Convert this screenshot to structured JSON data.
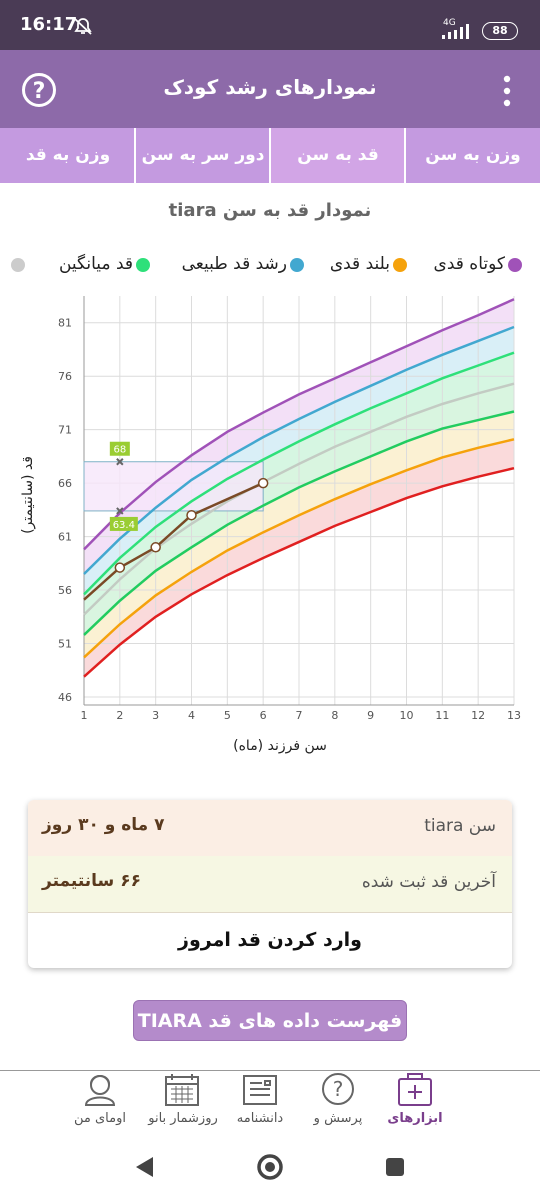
{
  "status_bar": {
    "time": "16:17",
    "network": "4G",
    "battery": "88"
  },
  "app_bar": {
    "title": "نمودارهای رشد کودک"
  },
  "tabs": [
    {
      "label": "وزن به سن",
      "selected": false
    },
    {
      "label": "قد به سن",
      "selected": true
    },
    {
      "label": "دور سر به سن",
      "selected": false
    },
    {
      "label": "وزن به قد",
      "selected": false
    }
  ],
  "chart_data": {
    "type": "line",
    "title": "نمودار قد به سن tiara",
    "x_label": "سن فرزند (ماه)",
    "y_label": "قد (سانتیمتر)",
    "legend": [
      {
        "label": "کوتاه قدی",
        "color": "#a052b8"
      },
      {
        "label": "بلند قدی",
        "color": "#f5a20c"
      },
      {
        "label": "رشد قد طبیعی",
        "color": "#42a8d0"
      },
      {
        "label": "قد میانگین",
        "color": "#2ee07a"
      }
    ],
    "x": [
      1,
      2,
      3,
      4,
      5,
      6,
      7,
      8,
      9,
      10,
      11,
      12,
      13
    ],
    "xlim": [
      1,
      13
    ],
    "xticks": [
      1,
      2,
      3,
      4,
      5,
      6,
      7,
      8,
      9,
      10,
      11,
      12,
      13
    ],
    "ylim": [
      45.25,
      83.5
    ],
    "yticks": [
      46,
      51,
      56,
      61,
      66,
      71,
      76,
      81
    ],
    "grid": true,
    "series": [
      {
        "color": "#a052b8",
        "fill": "#f3e0f7",
        "values": [
          59.8,
          63.2,
          66.1,
          68.6,
          70.8,
          72.6,
          74.3,
          75.8,
          77.3,
          78.8,
          80.3,
          81.7,
          83.2
        ]
      },
      {
        "color": "#42a8d0",
        "fill": "#d9eff7",
        "values": [
          57.5,
          60.8,
          63.7,
          66.3,
          68.4,
          70.3,
          72.0,
          73.6,
          75.1,
          76.6,
          78.0,
          79.3,
          80.6
        ]
      },
      {
        "color": "#2ee07a",
        "fill": "#d6f6e2",
        "values": [
          55.6,
          59.0,
          61.9,
          64.3,
          66.4,
          68.2,
          69.9,
          71.5,
          73.0,
          74.4,
          75.8,
          77.0,
          78.2
        ]
      },
      {
        "color": "#c3cbc3",
        "fill": "#d9f5e0",
        "values": [
          53.7,
          57.0,
          59.9,
          62.2,
          64.3,
          66.1,
          67.8,
          69.4,
          70.8,
          72.2,
          73.4,
          74.4,
          75.3
        ]
      },
      {
        "color": "#22cc60",
        "fill": "#fbf1d3",
        "values": [
          51.8,
          55.0,
          57.8,
          60.0,
          62.1,
          63.9,
          65.6,
          67.1,
          68.5,
          69.9,
          71.1,
          71.9,
          72.7
        ]
      },
      {
        "color": "#f5a20c",
        "fill": "#fadadb",
        "values": [
          49.7,
          52.8,
          55.5,
          57.7,
          59.7,
          61.4,
          63.0,
          64.5,
          65.9,
          67.2,
          68.4,
          69.3,
          70.1
        ]
      },
      {
        "color": "#e02020",
        "values": [
          47.9,
          50.9,
          53.5,
          55.6,
          57.4,
          59.0,
          60.5,
          62.0,
          63.3,
          64.6,
          65.7,
          66.6,
          67.4
        ]
      }
    ],
    "child": {
      "color": "#7a4a26",
      "x": [
        1,
        2,
        3,
        4,
        6
      ],
      "values": [
        55.1,
        58.1,
        60.0,
        63.0,
        66.0
      ],
      "markers": [
        false,
        true,
        true,
        true,
        true
      ]
    },
    "highlight": {
      "x": [
        1,
        6
      ],
      "y": [
        63.4,
        68
      ],
      "fill": "#f6e6fa",
      "color": "#7fb2c6"
    },
    "annotations": [
      {
        "x": 2,
        "value": 68,
        "color": "#9acd32"
      },
      {
        "x": 2,
        "value": 63.4,
        "color": "#9acd32"
      }
    ]
  },
  "info": {
    "rows": [
      {
        "label": "سن tiara",
        "value": "۷ ماه و ۳۰ روز"
      },
      {
        "label": "آخرین قد ثبت شده",
        "value": "۶۶ سانتیمتر"
      }
    ],
    "action": "وارد کردن قد امروز"
  },
  "list_button": "فهرست داده های قد TIARA",
  "bottom_nav": [
    {
      "label": "ابزارهای",
      "selected": true
    },
    {
      "label": "پرسش و",
      "selected": false
    },
    {
      "label": "دانشنامه",
      "selected": false
    },
    {
      "label": "روزشمار بانو",
      "selected": false
    },
    {
      "label": "اومای من",
      "selected": false
    }
  ]
}
